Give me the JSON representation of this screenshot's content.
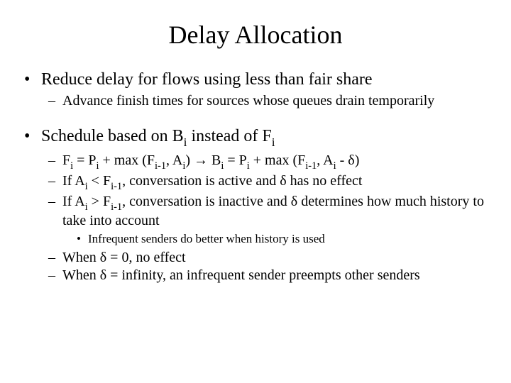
{
  "title": "Delay Allocation",
  "bullets": [
    {
      "text": "Reduce delay for flows using less than fair share",
      "sub": [
        {
          "text": "Advance finish times for sources whose queues drain temporarily"
        }
      ]
    },
    {
      "html": "Schedule based on B<span class=sub>i</span> instead of F<span class=sub>i</span>",
      "sub": [
        {
          "html": "F<span class=sub>i</span> = P<span class=sub>i</span> + max (F<span class=sub>i-1</span>, A<span class=sub>i</span>) → B<span class=sub>i</span> = P<span class=sub>i</span> + max (F<span class=sub>i-1</span>, A<span class=sub>i</span> - δ)"
        },
        {
          "html": "If A<span class=sub>i</span> &lt; F<span class=sub>i-1</span>, conversation is active and δ has no effect"
        },
        {
          "html": "If A<span class=sub>i</span> &gt; F<span class=sub>i-1</span>, conversation is inactive and δ determines how much history to take into account",
          "sub": [
            {
              "text": "Infrequent senders do better when history is used"
            }
          ]
        },
        {
          "text": "When  δ = 0, no effect"
        },
        {
          "text": "When  δ = infinity, an infrequent sender preempts other senders"
        }
      ]
    }
  ],
  "style": {
    "font_family": "Times New Roman",
    "title_fontsize": 36,
    "l1_fontsize": 24,
    "l2_fontsize": 20,
    "l3_fontsize": 17,
    "background_color": "#ffffff",
    "text_color": "#000000",
    "bullets": {
      "l1": "•",
      "l2": "–",
      "l3": "•"
    }
  }
}
